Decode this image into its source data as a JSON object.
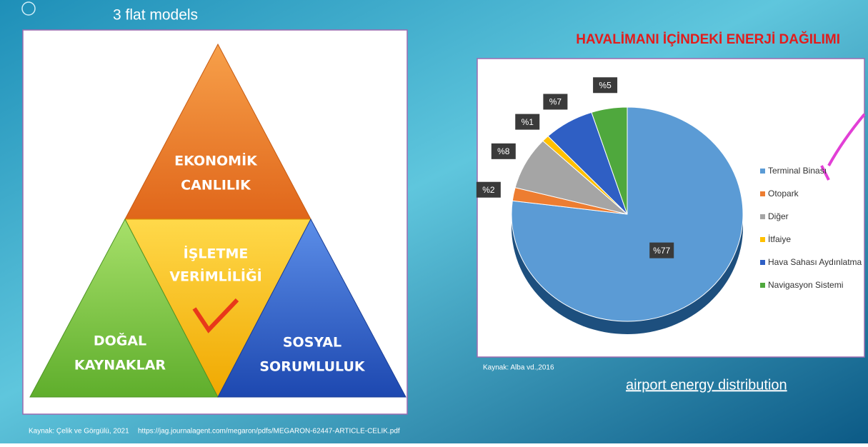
{
  "heading": "3 flat models",
  "diagram": {
    "top": [
      "EKONOMİK",
      "CANLILIK"
    ],
    "center": [
      "İŞLETME",
      "VERİMLİLİĞİ"
    ],
    "left": [
      "DOĞAL",
      "KAYNAKLAR"
    ],
    "right": [
      "SOSYAL",
      "SORUMLULUK"
    ]
  },
  "chart_data": {
    "type": "pie",
    "title": "HAVALİMANI İÇİNDEKİ ENERJİ DAĞILIMI",
    "categories": [
      "Terminal Binası",
      "Otopark",
      "Diğer",
      "İtfaiye",
      "Hava Sahası Aydınlatma",
      "Navigasyon Sistemi"
    ],
    "values": [
      77,
      2,
      8,
      1,
      7,
      5
    ],
    "value_labels": [
      "%77",
      "%2",
      "%8",
      "%1",
      "%7",
      "%5"
    ],
    "colors": [
      "#5b9bd5",
      "#ed7d31",
      "#a5a5a5",
      "#ffc000",
      "#2f5fc4",
      "#4fa83d"
    ]
  },
  "chart_source": "Kaynak: Alba vd.,2016",
  "caption": "airport energy distribution",
  "footer": {
    "source": "Kaynak: Çelik ve Görgülü, 2021",
    "url": "https://jag.journalagent.com/megaron/pdfs/MEGARON-62447-ARTICLE-CELIK.pdf"
  }
}
